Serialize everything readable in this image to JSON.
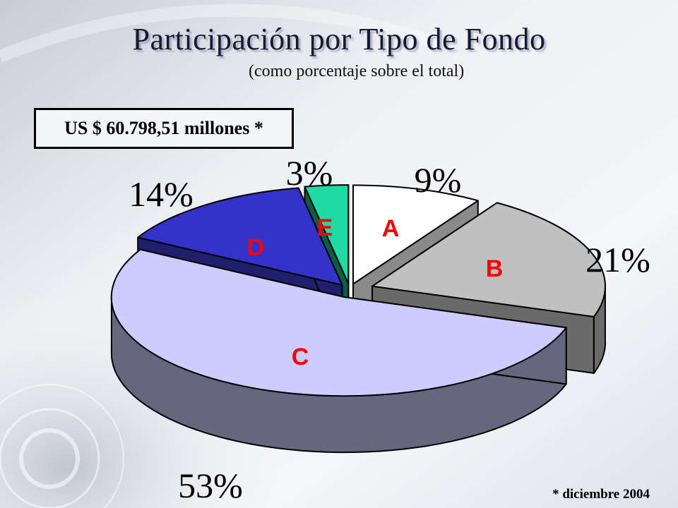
{
  "title": "Participación por Tipo de Fondo",
  "subtitle": "(como porcentaje sobre el total)",
  "total_label": "US $ 60.798,51 millones *",
  "footnote": "* diciembre 2004",
  "chart_data": {
    "type": "pie",
    "title": "Participación por Tipo de Fondo",
    "subtitle": "(como porcentaje sobre el total)",
    "style": "3d-exploded",
    "slices": [
      {
        "label": "A",
        "value": 9,
        "value_label": "9%",
        "color": "#ffffff",
        "side_color": "#8a8a8a"
      },
      {
        "label": "B",
        "value": 21,
        "value_label": "21%",
        "color": "#c0c0c0",
        "side_color": "#6a6a6a"
      },
      {
        "label": "C",
        "value": 53,
        "value_label": "53%",
        "color": "#ccccff",
        "side_color": "#66667e"
      },
      {
        "label": "D",
        "value": 14,
        "value_label": "14%",
        "color": "#3333cc",
        "side_color": "#1f1f6e"
      },
      {
        "label": "E",
        "value": 3,
        "value_label": "3%",
        "color": "#1fd9a6",
        "side_color": "#0b5e46"
      }
    ],
    "label_color": "#ff0000"
  }
}
